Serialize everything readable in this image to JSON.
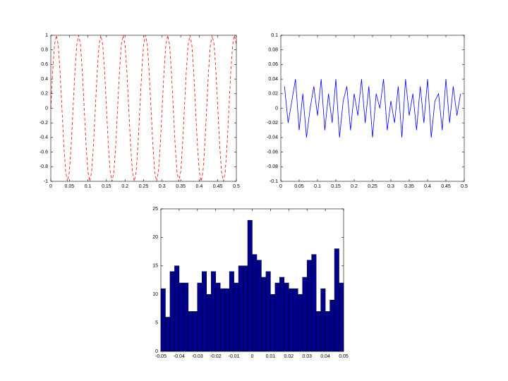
{
  "chart_data": [
    {
      "type": "line",
      "color": "#ff0000",
      "line_style": "dashed",
      "x": [
        0,
        0.005,
        0.01,
        0.015,
        0.02,
        0.025,
        0.03,
        0.035,
        0.04,
        0.045,
        0.05,
        0.055,
        0.06,
        0.065,
        0.07,
        0.075,
        0.08,
        0.085,
        0.09,
        0.095,
        0.1,
        0.105,
        0.11,
        0.115,
        0.12,
        0.125,
        0.13,
        0.135,
        0.14,
        0.145,
        0.15,
        0.155,
        0.16,
        0.165,
        0.17,
        0.175,
        0.18,
        0.185,
        0.19,
        0.195,
        0.2,
        0.205,
        0.21,
        0.215,
        0.22,
        0.225,
        0.23,
        0.235,
        0.24,
        0.245,
        0.25,
        0.255,
        0.26,
        0.265,
        0.27,
        0.275,
        0.28,
        0.285,
        0.29,
        0.295,
        0.3,
        0.305,
        0.31,
        0.315,
        0.32,
        0.325,
        0.33,
        0.335,
        0.34,
        0.345,
        0.35,
        0.355,
        0.36,
        0.365,
        0.37,
        0.375,
        0.38,
        0.385,
        0.39,
        0.395,
        0.4,
        0.405,
        0.41,
        0.415,
        0.42,
        0.425,
        0.43,
        0.435,
        0.44,
        0.445,
        0.45,
        0.455,
        0.46,
        0.465,
        0.47,
        0.475,
        0.48,
        0.485,
        0.49,
        0.495,
        0.5
      ],
      "values": [
        0,
        0.5,
        0.87,
        1,
        0.87,
        0.5,
        0,
        -0.5,
        -0.87,
        -1,
        -0.87,
        -0.5,
        0,
        0.5,
        0.87,
        1,
        0.87,
        0.5,
        0,
        -0.5,
        -0.87,
        -1,
        -0.87,
        -0.5,
        0,
        0.5,
        0.87,
        1,
        0.87,
        0.5,
        0,
        -0.5,
        -0.87,
        -1,
        -0.87,
        -0.5,
        0,
        0.5,
        0.87,
        1,
        0.87,
        0.5,
        0,
        -0.5,
        -0.87,
        -1,
        -0.87,
        -0.5,
        0,
        0.5,
        0.87,
        1,
        0.87,
        0.5,
        0,
        -0.5,
        -0.87,
        -1,
        -0.87,
        -0.5,
        0,
        0.5,
        0.87,
        1,
        0.87,
        0.5,
        0,
        -0.5,
        -0.87,
        -1,
        -0.87,
        -0.5,
        0,
        0.5,
        0.87,
        1,
        0.87,
        0.5,
        0,
        -0.5,
        -0.87,
        -1,
        -0.87,
        -0.5,
        0,
        0.5,
        0.87,
        1,
        0.87,
        0.5,
        0,
        -0.5,
        -0.87,
        -1,
        -0.87,
        -0.5,
        0,
        0.5,
        0.87,
        1,
        0.87
      ],
      "xlim": [
        0,
        0.5
      ],
      "ylim": [
        -1,
        1
      ],
      "xticks": [
        0,
        0.05,
        0.1,
        0.15,
        0.2,
        0.25,
        0.3,
        0.35,
        0.4,
        0.45,
        0.5
      ],
      "yticks": [
        -1,
        -0.8,
        -0.6,
        -0.4,
        -0.2,
        0,
        0.2,
        0.4,
        0.6,
        0.8,
        1
      ]
    },
    {
      "type": "line",
      "color": "#0000ff",
      "line_style": "solid",
      "x": [
        0.01,
        0.02,
        0.03,
        0.04,
        0.05,
        0.06,
        0.07,
        0.08,
        0.09,
        0.1,
        0.11,
        0.12,
        0.13,
        0.14,
        0.15,
        0.16,
        0.17,
        0.18,
        0.19,
        0.2,
        0.21,
        0.22,
        0.23,
        0.24,
        0.25,
        0.26,
        0.27,
        0.28,
        0.29,
        0.3,
        0.31,
        0.32,
        0.33,
        0.34,
        0.35,
        0.36,
        0.37,
        0.38,
        0.39,
        0.4,
        0.41,
        0.42,
        0.43,
        0.44,
        0.45,
        0.46,
        0.47,
        0.48,
        0.49
      ],
      "values": [
        0.03,
        -0.02,
        0.01,
        0.04,
        -0.03,
        0.02,
        -0.04,
        0,
        0.03,
        -0.01,
        0.04,
        -0.03,
        0.02,
        -0.02,
        0.04,
        -0.04,
        0.01,
        0.03,
        -0.03,
        0.02,
        -0.01,
        0.04,
        -0.02,
        0.03,
        -0.04,
        0.02,
        0,
        0.04,
        -0.03,
        0.01,
        -0.02,
        0.03,
        -0.04,
        0.04,
        -0.01,
        0.02,
        -0.03,
        0.03,
        -0.02,
        0.04,
        -0.04,
        0.01,
        0.02,
        -0.03,
        0.04,
        -0.02,
        0.03,
        -0.01,
        0.02
      ],
      "xlim": [
        0,
        0.5
      ],
      "ylim": [
        -0.1,
        0.1
      ],
      "xticks": [
        0,
        0.05,
        0.1,
        0.15,
        0.2,
        0.25,
        0.3,
        0.35,
        0.4,
        0.45,
        0.5
      ],
      "yticks": [
        -0.1,
        -0.08,
        -0.06,
        -0.04,
        -0.02,
        0,
        0.02,
        0.04,
        0.06,
        0.08,
        0.1
      ]
    },
    {
      "type": "histogram",
      "color": "#00008f",
      "bins": [
        -0.05,
        -0.0475,
        -0.045,
        -0.0425,
        -0.04,
        -0.0375,
        -0.035,
        -0.0325,
        -0.03,
        -0.0275,
        -0.025,
        -0.0225,
        -0.02,
        -0.0175,
        -0.015,
        -0.0125,
        -0.01,
        -0.0075,
        -0.005,
        -0.0025,
        0,
        0.0025,
        0.005,
        0.0075,
        0.01,
        0.0125,
        0.015,
        0.0175,
        0.02,
        0.0225,
        0.025,
        0.0275,
        0.03,
        0.0325,
        0.035,
        0.0375,
        0.04,
        0.0425,
        0.045,
        0.0475,
        0.05
      ],
      "values": [
        11,
        6,
        14,
        15,
        12,
        12,
        7,
        7,
        12,
        14,
        10,
        14,
        12,
        11,
        11,
        14,
        12,
        15,
        15,
        23,
        17,
        16,
        13,
        14,
        10,
        12,
        13,
        12,
        11,
        11,
        10,
        13,
        16,
        17,
        7,
        11,
        7,
        9,
        18,
        12
      ],
      "xlim": [
        -0.05,
        0.05
      ],
      "ylim": [
        0,
        25
      ],
      "xticks": [
        -0.05,
        -0.04,
        -0.03,
        -0.02,
        -0.01,
        0,
        0.01,
        0.02,
        0.03,
        0.04,
        0.05
      ],
      "yticks": [
        0,
        5,
        10,
        15,
        20,
        25
      ]
    }
  ]
}
